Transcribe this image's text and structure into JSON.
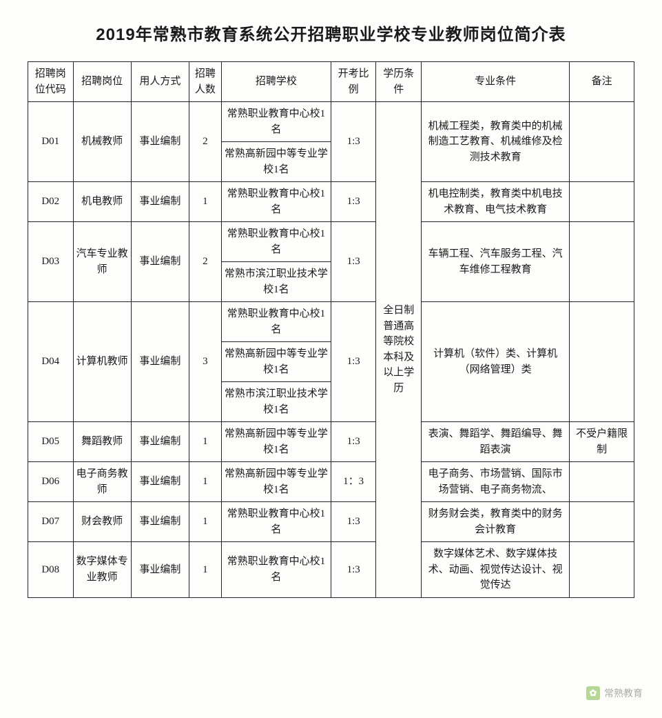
{
  "title": "2019年常熟市教育系统公开招聘职业学校专业教师岗位简介表",
  "columns": [
    "招聘岗位代码",
    "招聘岗位",
    "用人方式",
    "招聘人数",
    "招聘学校",
    "开考比例",
    "学历条件",
    "专业条件",
    "备注"
  ],
  "col_widths_pct": [
    7,
    9,
    9,
    5,
    17,
    7,
    7,
    23,
    10
  ],
  "education_req": "全日制普通高等院校本科及以上学历",
  "rows": [
    {
      "code": "D01",
      "position": "机械教师",
      "mode": "事业编制",
      "count": "2",
      "schools": [
        "常熟职业教育中心校1名",
        "常熟高新园中等专业学校1名"
      ],
      "ratio": "1:3",
      "major": "机械工程类，教育类中的机械制造工艺教育、机械维修及检测技术教育",
      "note": ""
    },
    {
      "code": "D02",
      "position": "机电教师",
      "mode": "事业编制",
      "count": "1",
      "schools": [
        "常熟职业教育中心校1名"
      ],
      "ratio": "1:3",
      "major": "机电控制类，教育类中机电技术教育、电气技术教育",
      "note": ""
    },
    {
      "code": "D03",
      "position": "汽车专业教师",
      "mode": "事业编制",
      "count": "2",
      "schools": [
        "常熟职业教育中心校1名",
        "常熟市滨江职业技术学校1名"
      ],
      "ratio": "1:3",
      "major": "车辆工程、汽车服务工程、汽车维修工程教育",
      "note": ""
    },
    {
      "code": "D04",
      "position": "计算机教师",
      "mode": "事业编制",
      "count": "3",
      "schools": [
        "常熟职业教育中心校1名",
        "常熟高新园中等专业学校1名",
        "常熟市滨江职业技术学校1名"
      ],
      "ratio": "1:3",
      "major": "计算机（软件）类、计算机（网络管理）类",
      "note": ""
    },
    {
      "code": "D05",
      "position": "舞蹈教师",
      "mode": "事业编制",
      "count": "1",
      "schools": [
        "常熟高新园中等专业学校1名"
      ],
      "ratio": "1:3",
      "major": "表演、舞蹈学、舞蹈编导、舞蹈表演",
      "note": "不受户籍限制"
    },
    {
      "code": "D06",
      "position": "电子商务教师",
      "mode": "事业编制",
      "count": "1",
      "schools": [
        "常熟高新园中等专业学校1名"
      ],
      "ratio": "1：3",
      "major": "电子商务、市场营销、国际市场营销、电子商务物流、",
      "note": ""
    },
    {
      "code": "D07",
      "position": "财会教师",
      "mode": "事业编制",
      "count": "1",
      "schools": [
        "常熟职业教育中心校1名"
      ],
      "ratio": "1:3",
      "major": "财务财会类，教育类中的财务会计教育",
      "note": ""
    },
    {
      "code": "D08",
      "position": "数字媒体专业教师",
      "mode": "事业编制",
      "count": "1",
      "schools": [
        "常熟职业教育中心校1名"
      ],
      "ratio": "1:3",
      "major": "数字媒体艺术、数字媒体技术、动画、视觉传达设计、视觉传达",
      "note": ""
    }
  ],
  "watermark": {
    "text": "常熟教育",
    "icon_glyph": "✿"
  }
}
